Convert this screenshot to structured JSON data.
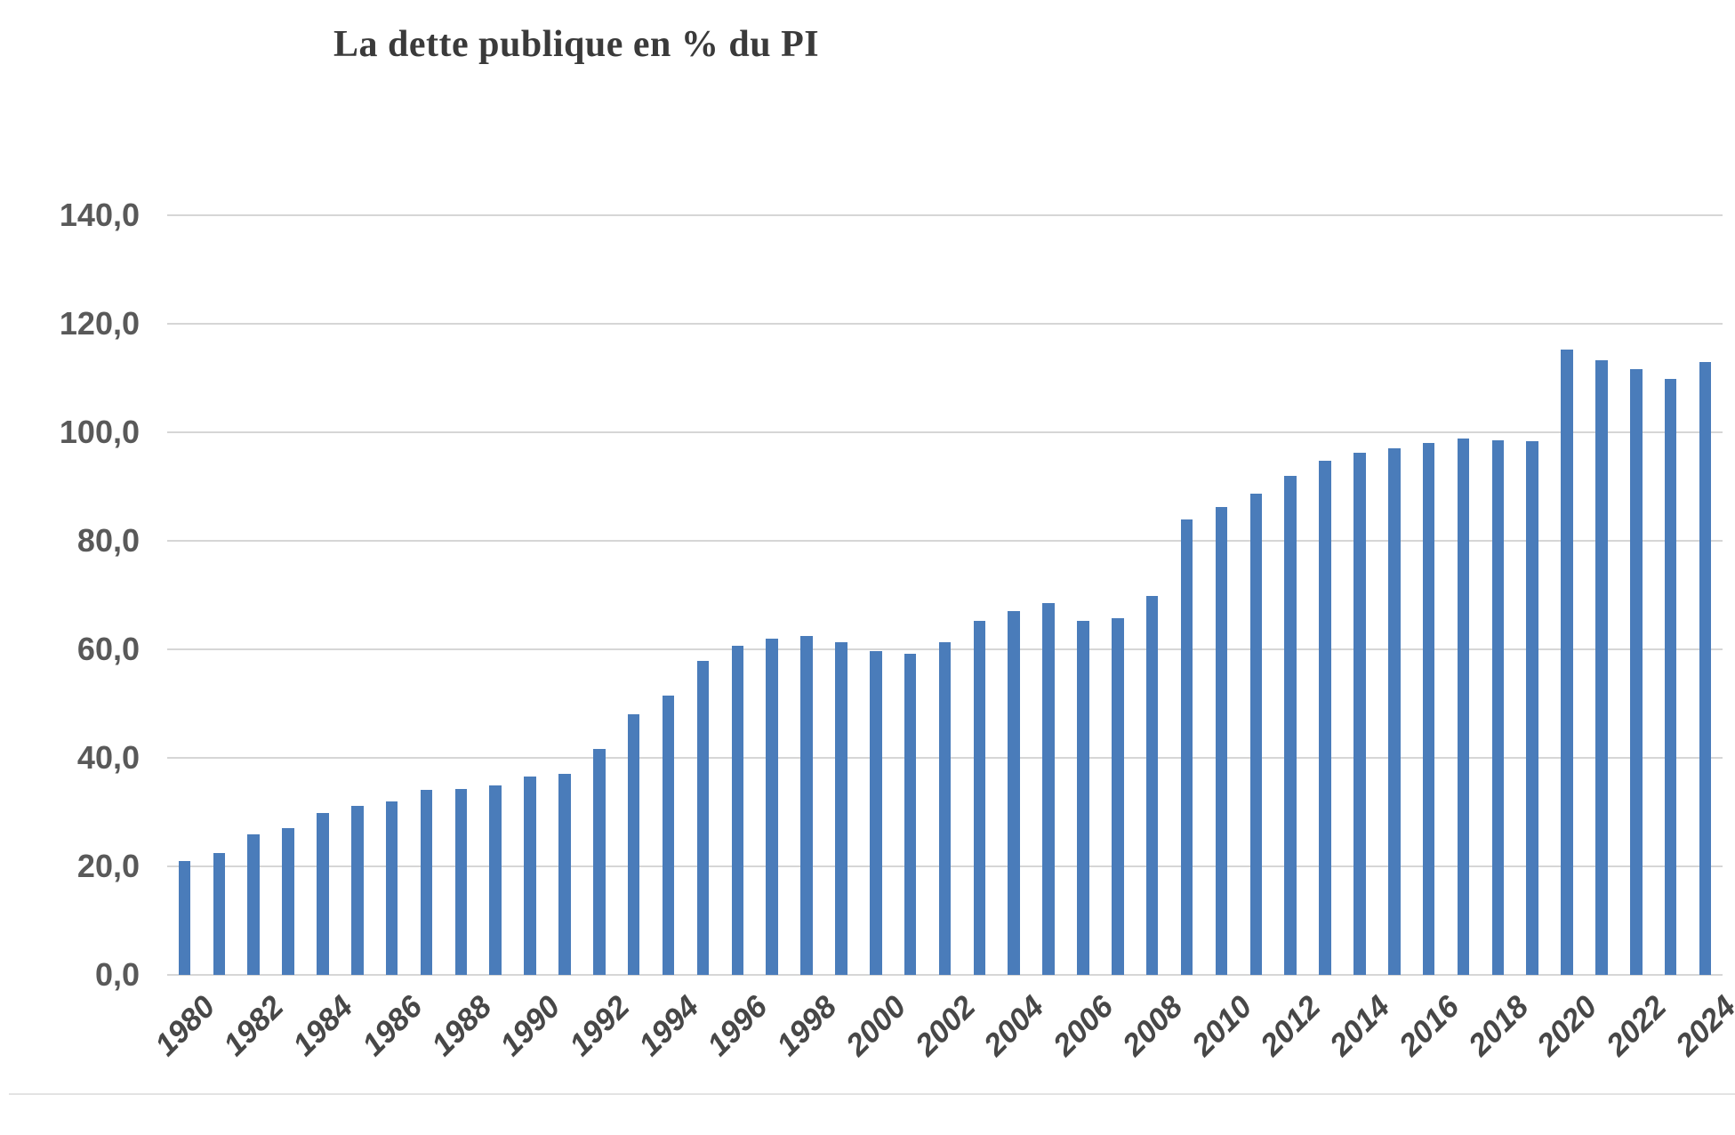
{
  "title": "La dette publique en % du PI",
  "chart_data": {
    "type": "bar",
    "title": "La dette publique en % du PI",
    "x": [
      1980,
      1981,
      1982,
      1983,
      1984,
      1985,
      1986,
      1987,
      1988,
      1989,
      1990,
      1991,
      1992,
      1993,
      1994,
      1995,
      1996,
      1997,
      1998,
      1999,
      2000,
      2001,
      2002,
      2003,
      2004,
      2005,
      2006,
      2007,
      2008,
      2009,
      2010,
      2011,
      2012,
      2013,
      2014,
      2015,
      2016,
      2017,
      2018,
      2019,
      2020,
      2021,
      2022,
      2023,
      2024
    ],
    "values": [
      21.0,
      22.4,
      25.9,
      27.1,
      29.8,
      31.1,
      32.0,
      34.1,
      34.2,
      35.0,
      36.6,
      37.1,
      41.6,
      48.0,
      51.5,
      57.8,
      60.6,
      61.9,
      62.4,
      61.3,
      59.6,
      59.1,
      61.3,
      65.2,
      67.0,
      68.5,
      65.3,
      65.7,
      69.8,
      84.0,
      86.3,
      88.7,
      92.0,
      94.8,
      96.2,
      97.0,
      98.1,
      98.8,
      98.6,
      98.4,
      115.2,
      113.3,
      111.6,
      109.9,
      113.0
    ],
    "xlabel": "",
    "ylabel": "",
    "ylim": [
      0,
      140
    ],
    "ytick_step": 20,
    "ytick_labels": [
      "0,0",
      "20,0",
      "40,0",
      "60,0",
      "80,0",
      "100,0",
      "120,0",
      "140,0"
    ],
    "xtick_labels": [
      "1980",
      "1982",
      "1984",
      "1986",
      "1988",
      "1990",
      "1992",
      "1994",
      "1996",
      "1998",
      "2000",
      "2002",
      "2004",
      "2006",
      "2008",
      "2010",
      "2012",
      "2014",
      "2016",
      "2018",
      "2020",
      "2022",
      "2024"
    ],
    "grid": true,
    "legend": "none",
    "decimal_separator": ","
  },
  "colors": {
    "bar": "#4a7cba",
    "gridline": "#d6d6d6",
    "y_label": "#595959",
    "x_label": "#474747",
    "title": "#3a3a3a",
    "divider": "#e3e3e3",
    "background": "#ffffff"
  }
}
